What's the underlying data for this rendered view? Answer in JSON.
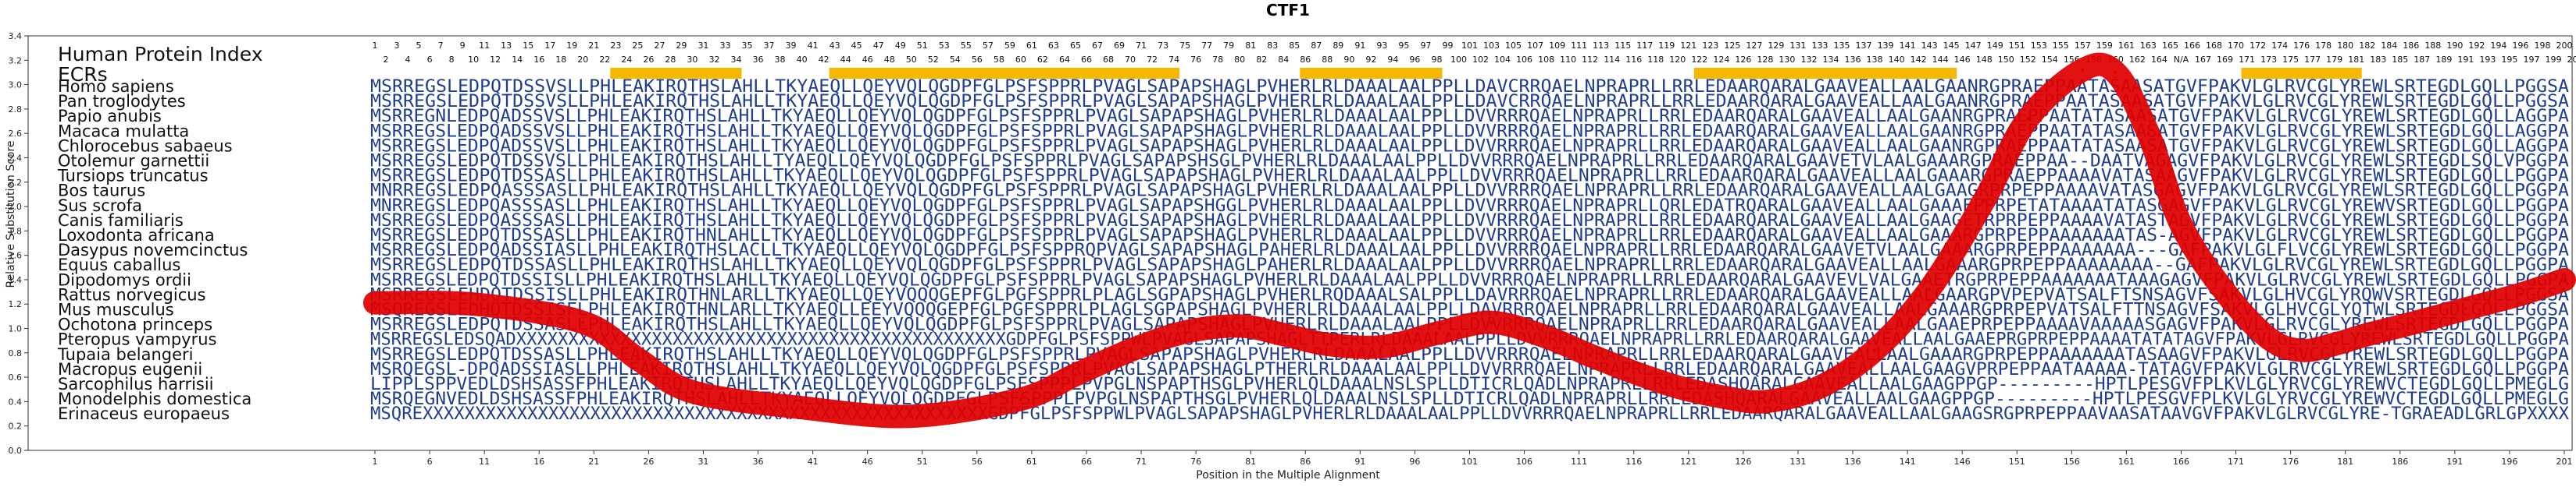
{
  "chart_data": {
    "type": "line",
    "title": "CTF1",
    "xlabel": "Position in the Multiple Alignment",
    "ylabel": "Relative Substitution Score",
    "ylim": [
      0.0,
      3.4
    ],
    "xlim": [
      1,
      201
    ],
    "y_ticks": [
      "0.0",
      "0.2",
      "0.4",
      "0.6",
      "0.8",
      "1.0",
      "1.2",
      "1.4",
      "1.6",
      "1.8",
      "2.0",
      "2.2",
      "2.4",
      "2.6",
      "2.8",
      "3.0",
      "3.2",
      "3.4"
    ],
    "x_ticks": [
      1,
      6,
      11,
      16,
      21,
      26,
      31,
      36,
      41,
      46,
      51,
      56,
      61,
      66,
      71,
      76,
      81,
      86,
      91,
      96,
      101,
      106,
      111,
      116,
      121,
      126,
      131,
      136,
      141,
      146,
      151,
      156,
      161,
      166,
      171,
      176,
      181,
      186,
      191,
      196,
      201
    ],
    "series": [
      {
        "color": "#e00000",
        "x": [
          1,
          10,
          20,
          25,
          30,
          40,
          50,
          60,
          65,
          70,
          75,
          80,
          84,
          88,
          93,
          98,
          103,
          108,
          112,
          116,
          120,
          124,
          128,
          133,
          138,
          143,
          148,
          152,
          157,
          160,
          163,
          166,
          170,
          174,
          177,
          180,
          183,
          187,
          192,
          197,
          201
        ],
        "y": [
          1.21,
          1.2,
          1.05,
          0.75,
          0.48,
          0.35,
          0.28,
          0.42,
          0.62,
          0.82,
          0.97,
          1.02,
          0.95,
          0.87,
          0.85,
          0.96,
          1.05,
          0.93,
          0.78,
          0.64,
          0.52,
          0.44,
          0.4,
          0.52,
          0.82,
          1.32,
          2.05,
          2.72,
          3.12,
          3.1,
          2.6,
          1.85,
          1.3,
          0.92,
          0.82,
          0.87,
          0.95,
          1.04,
          1.16,
          1.28,
          1.4
        ]
      }
    ],
    "top_index_row1": [
      "1",
      "3",
      "5",
      "7",
      "9",
      "11",
      "13",
      "15",
      "17",
      "19",
      "21",
      "23",
      "25",
      "27",
      "29",
      "31",
      "33",
      "35",
      "37",
      "39",
      "41",
      "43",
      "45",
      "47",
      "49",
      "51",
      "53",
      "55",
      "57",
      "59",
      "61",
      "63",
      "65",
      "67",
      "69",
      "71",
      "73",
      "75",
      "77",
      "79",
      "81",
      "83",
      "85",
      "87",
      "89",
      "91",
      "93",
      "95",
      "97",
      "99",
      "101",
      "103",
      "105",
      "107",
      "109",
      "111",
      "113",
      "115",
      "117",
      "119",
      "121",
      "123",
      "125",
      "127",
      "129",
      "131",
      "133",
      "135",
      "137",
      "139",
      "141",
      "143",
      "145",
      "147",
      "149",
      "151",
      "153",
      "155",
      "157",
      "159",
      "161",
      "163",
      "165",
      "166",
      "168",
      "170",
      "172",
      "174",
      "176",
      "178",
      "180",
      "182",
      "184",
      "186",
      "188",
      "190",
      "192",
      "194",
      "196",
      "198",
      "200"
    ],
    "top_index_row2": [
      "2",
      "4",
      "6",
      "8",
      "10",
      "12",
      "14",
      "16",
      "18",
      "20",
      "22",
      "24",
      "26",
      "28",
      "30",
      "32",
      "34",
      "36",
      "38",
      "40",
      "42",
      "44",
      "46",
      "48",
      "50",
      "52",
      "54",
      "56",
      "58",
      "60",
      "62",
      "64",
      "66",
      "68",
      "70",
      "72",
      "74",
      "76",
      "78",
      "80",
      "82",
      "84",
      "86",
      "88",
      "90",
      "92",
      "94",
      "96",
      "98",
      "100",
      "102",
      "104",
      "106",
      "108",
      "110",
      "112",
      "114",
      "116",
      "118",
      "120",
      "122",
      "124",
      "126",
      "128",
      "130",
      "132",
      "134",
      "136",
      "138",
      "140",
      "142",
      "144",
      "146",
      "148",
      "150",
      "152",
      "154",
      "156",
      "158",
      "160",
      "162",
      "164",
      "N/A",
      "167",
      "169",
      "171",
      "173",
      "175",
      "177",
      "179",
      "181",
      "183",
      "185",
      "187",
      "189",
      "191",
      "193",
      "195",
      "197",
      "199",
      "201"
    ],
    "ecr_regions": [
      [
        23,
        34
      ],
      [
        43,
        74
      ],
      [
        86,
        98
      ],
      [
        122,
        145
      ],
      [
        172,
        182
      ]
    ],
    "ecr_color": "#f5b800",
    "index_label": "Human Protein Index",
    "ecr_label": "ECRs"
  },
  "alignment": [
    {
      "species": "Homo sapiens",
      "seq": "MSRREGSLEDPQTDSSVSLLPHLEAKIRQTHSLAHLLTKYAEQLLQEYVQLQGDPFGLPSFSPPRLPVAGLSAPAPSHAGLPVHERLRLDAAALAALPPLLDAVCRRQAELNPRAPRLLRRLEDAARQARALGAAVEALLAALGAANRGPRAEPPAATASAASATGVFPAKVLGLRVCGLYREWLSRTEGDLGQLLPGGSA"
    },
    {
      "species": "Pan troglodytes",
      "seq": "MSRREGSLEDPQTDSSVSLLPHLEAKIRQTHSLAHLLTKYAEQLLQEYVQLQGDPFGLPSFSPPRLPVAGLSAPAPSHAGLPVHERLRLDAAALAALPPLLDAVCRRQAELNPRAPRLLRRLEDAARQARALGAAVEALLAALGAANRGPRAEPPAATASAASATGVFPAKVLGLRVCGLYREWLSRTEGDLGQLLPGGSA"
    },
    {
      "species": "Papio anubis",
      "seq": "MSRREGNLEDPQADSSVSLLPHLEAKIRQTHSLAHLLTKYAEQLLQEYVQLQGDPFGLPSFSPPRLPVAGLSAPAPSHAGLPVHERLRLDAAALAALPPLLDVVRRRQAELNPRAPRLLRRLEDAARQARALGAAVEALLAALGAANRGPRAEPPAATATASAASATGVFPAKVLGLRVCGLYREWLSRTEGDLGQLLAGGPA"
    },
    {
      "species": "Macaca mulatta",
      "seq": "MSRREGSLEDPQADSSVSLLPHLEAKIRQTHSLAHLLTKYAEQLLQEYVQLQGDPFGLPSFSPPRLPVAGLSAPAPSHAGLPVHERLRLDAAALAALPPLLDVVRRRQAELNPRAPRLLRRLEDAARQARALGAAVEALLAALGAANRGPRAEPPAATATASAASATGVFPAKVLGLRVCGLYREWLSRTEGDLGQLLAGGPA"
    },
    {
      "species": "Chlorocebus sabaeus",
      "seq": "MSRREGSLEDPQADSSVSLLPHLEAKIRQTHSLAHLLTKYAEQLLQEYVQLQGDPFGLPSFSPPRLPVAGLSAPAPSHAGLPVHERLRLDAAALAALPPLLDVVRRRQAELNPRAPRLLRRLEDAARQARALGAAVEALLAALGAANRGPRAEPPAATATASAASATGVFPAKVLGLRVCGLYREWLSRTEGDLGQLLAGGPA"
    },
    {
      "species": "Otolemur garnettii",
      "seq": "MSRREGSLEDPQTDSSVSLLPHLEAKIRQTHSLAHLLTYAEQLLQEYVQLQGDPFGLPSFSPPRLPVAGLSAPAPSHSGLPVHERLRLDAAALAALPPLLDVVRRRQAELNPRAPRLLRRLEDAARQARALGAAVETVLAALGAAARGPRAEPPAA--DAATVAGAGVFPAKVLGLRVCGLYREWLSRTEGDLSQLVPGGPA"
    },
    {
      "species": "Tursiops truncatus",
      "seq": "MSRREGSLEDPQTDSSASLLPHLEAKIRQTHSLAHLLTKYAEQLLQEYVQLQGDPFGLPSFSPPRLPVAGLSAPAPSHAGLPVHERLRLDAAALAALPPLLDVVRRRQAELNPRAPRLLRRLEDAARQARALGAAVEALLAALGAAARGPRAEPPAAAAVATASAAGVFPAKVLGLRVCGLYREWLSRTEGDLGQLLPGGPA"
    },
    {
      "species": "Bos taurus",
      "seq": "MNRREGSLEDPQASSSASLLPHLEAKIRQTHSLAHLLTKYAEQLLQEYVQLQGDPFGLPSFSPPRLPVAGLSAPAPSHAGLPVHERLRLDAAALAALPPLLDVVRRRQAELNPRAPRLLRRLEDAARQARALGAAVEALLAALGAAGRPRPEPPAAAAVATASGAGVFPAKVLGLRVCGLYREWLSRTEGDLGQLLPGGPA"
    },
    {
      "species": "Sus scrofa",
      "seq": "MNRREGSLEDPQASSSASLLPHLEAKIRQTHSLAHLLTKYAEQLLQEYVQLQGDPFGLPSFSPPRLPVAGLSAPAPSHGGLPVHERLRLDAAALAALPPLLDVVRRRQAELNPRAPRLLQRLEDATRQARALGAAVEALLAALGAAAEPPRPETATAAAATATASGAGVFPAKVLGLRVCGLYREWVSRTEGDLGQLLPGGPA"
    },
    {
      "species": "Canis familiaris",
      "seq": "MSRREGSLEDPQASSSASLLPHLEAKIRQTHSLAHLLTKYAEQLLQEYVQLQGDPFGLPSFSPPRLPVAGLSAPAPSHAGLPVHERLRLDAAALAALPPLLDVVRRRQAELNPRAPRLLRRLEDAARQARALGAAVEALLAALGAAGETRPRPEPPAAAAVATASTAGVFPAKVLGLRVCGLYREWLSRTEGDLGQLLPGGPA"
    },
    {
      "species": "Loxodonta africana",
      "seq": "MSRREGSLEDPQTDSSASLLPHLEAKIRQTHNLAHLLTKYAEQLLQEYVQLQGDPFGLPSFSPPRLPVAGLSAPAPSHAGLPVHERLRLDAAALAALPPLLDVVRRRQAELNPRAPRLLRRLEDAARQARALGAAVEALLAALGAAARGPRPEPPAAAAAAATAS-AGVFPAKVLGLRVCGLYREWLSRTEGDLGQLLPGGPA"
    },
    {
      "species": "Dasypus novemcinctus",
      "seq": "MSRREGSLEDPQADSSIASLLPHLEAKIRQTHSLACLLTKYAEQLLQEYVQLQGDPFGLPSFSPPRQPVAGLSAPAPSHAGLPAHERLRLDAAALAALPPLLDVVRRRQAELNPRAPRLLRRLEDAARQARALGAAVETVLAALGAAARGPRPEPPAAAAAAA---GAFPAKVLGLFLVCGLYREWLSRTEGDLGQLLPGGPA"
    },
    {
      "species": "Equus caballus",
      "seq": "MSRREGSLEDPQTDSSASLLPHLEAKIRQTHSLAHLLTKYAEQLLQEYVQLQGDPFGLPSFSPPRLPVAGLSAPAPSHAGLPAHERLRLDAAALAALPPLLDVVRRRQAELNPRAPRLLRRLEDAARQARALGAAVEALLAALGAAARGPRPEPPAAAAAAAA--GAFPAKVLGLRVCGLYREWLSRTEGDLGQLLPGGPA"
    },
    {
      "species": "Dipodomys ordii",
      "seq": "MSRREGSLEDPQTDSSISLLPHLEAKIRQTHSLAHLLTKYAEQLLQEYVQLQGDPFGLPSFSPPRLPVAGLSAPAPSHAGLPVHERLRLDAAALAALPPLLDVVRRRQAELNPRAPRLLRRLEDAARQARALGAAVEVLVALGAAETRGPRPEPPAAAAAAATAAAGAGVFPAKVLGLRVCGLYREWLSRTEGDLGQLLPGGPA"
    },
    {
      "species": "Rattus norvegicus",
      "seq": "MSRREGSLEHDQTDSSISLLPHLEAKIRQTHNLARLLTKYAEQLLQEYVQQQGEPFGLPGFSPPRLPLAGLSGPAPSHAGLPVHERLRQDAAALSALPPLLDAVRRRQAELNPRAPRLLRRLEDAARQARALGAAVEALLAALGAARGPVPEPVATSALFTSNSAGVFSAKVLGLHVCGLYRQWVSRTEGDLGQLLPGGSA"
    },
    {
      "species": "Mus musculus",
      "seq": "MSQREGSLEDHQTDSSISFLPHLEAKIRQTHNLARLLTKYAEQLLEEYVQQQGEPFGLPGFSPPRLPLAGLSGPAPSHAGLPVHERLRLDAAALAALPPLLDAVRRRQAELNPRAPRLLRRLEDAARQARALGAAVEALLAALGAAARGPRPEPVATSALFTTNSAGVFSAKVLGLHVCGLYQTWLSRTEGDLGQLLPGGSA"
    },
    {
      "species": "Ochotona princeps",
      "seq": "MSRREGSLEDPQTDSSASLLPHLEAKIRQTHSLAHLLTKYAEQLLQEYVQLQGDPFGLPSFSPPRLPVAGLSAPAPSHAGLPVHERLRLDAAALAALPPLLDVVRRRQAELNPRAPRLLRRLEDAARQARALGAAVEALLAALGAAEPRPEPPAAAAVAAAAASGAGVFPAKVLGLRVCGLYREWLSRTEGDLGQLLPGGPA"
    },
    {
      "species": "Pteropus vampyrus",
      "seq": "MSRREGSLEDSQADXXXXXXXXXXXXXXXXXXXXXXXXXXXXXXXXXXXXXXXXXXXXXXXGDPFGLPSFSPPWLPVAGLSAPAPSHAGLTTPERLRLDAAALAALPPLLDVVRRRQAELNPRAPRLLRRLEDAARQARALGAAVEALLAALGAAEPRGPRPEPPAAAATATATAGVFPAKVLGLRVCGLYREWLSRTEGDLGQLLPGGPA"
    },
    {
      "species": "Tupaia belangeri",
      "seq": "MSRREGSLEDPQTDSSASLLPHLEAKIRQTHSLAHLLTKYAEQLLQEYVQLQGDPFGLPSFSPPRLPVAGLSAPAPSHAGLPVHERLRLDAAALAALPPLLDVVRRRQAELNPRAPRLLRRLEDAARQARALGAAVEALLAALGAAARGPRPEPPAAAAAAATASAAGVFPAKVLGLRVCGLYREWLSRTEGDLGQLLPGGPA"
    },
    {
      "species": "Macropus eugenii",
      "seq": "MSRQEGSL-DPQADSSIASLLPHLEAKIRQTHSLAHLLTKYAEQLLQEYVQLQGDPFGLPSFSPPRLPVAGLSAPAPSHAGLPTHERLRLDAAALAALPPLLDVVRRRQAELNPRAPRLLRRLEDAARQARALGAAVEALLAALGAAGVPRPEPPAATAAAAA-TATAGVFPAKVLGLRVCGLYREWLSRTEGDLGQLLPGGPA"
    },
    {
      "species": "Sarcophilus harrisii",
      "seq": "LIPPLSPPVEDLDSHSASSFPHLEAKIRQTHSLAHLLTKYAEQLLQEYVQLQGDPFGLPSFSPPPLPVPGLNSPAPTHSGLPVHERLQLDAAALNSLSPLLDTICRLQADLNPRAPRLLRRLEDASHQARALGAAVEALLAALGAAGPPGP---------HPTLPESGVFPLKVLGLYRVCGLYREWVCTEGDLGQLLPMEGLG"
    },
    {
      "species": "Monodelphis domestica",
      "seq": "MSRQEGNVEDLDSHSASSFPHLEAKIRQTHSLAHLLTKYAEQLLQEYVQLQGDPFGLPSFSPPPLPVPGLNSPAPTHSGLPVHERLQLDAAALNSLSPLLDTICRLQADLNPRAPRLLRRLEDASHQARALGAAVEALLAALGAAGPPGP---------HPTLPESGVFPLKVLGLYRVCGLYREWVCTEGDLGQLLPMEGLG"
    },
    {
      "species": "Erinaceus europaeus",
      "seq": "MSQREXXXXXXXXXXXXXXXXXXXXXXXXXXXXXXXXXXXXXXXXXXXXXXXXXXXXXXGDPFGLPSFSPPWLPVAGLSAPAPSHAGLPVHERLRLDAAALAALPPLLDVVRRRQAELNPRAPRLLRRLEDAARQARALGAAVEALLAALGAAGSRGPRPEPPAAVAASATAAVGVFPAKVLGLRVCGLYRE-TGRAEADLGRLGPXXXX"
    }
  ]
}
